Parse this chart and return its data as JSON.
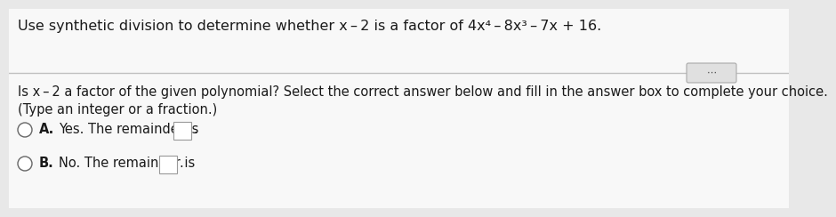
{
  "bg_color": "#e8e8e8",
  "panel_color": "#f5f5f5",
  "title_text": "Use synthetic division to determine whether x – 2 is a factor of 4x",
  "sup4": "4",
  "title_mid": "– 8x",
  "sup3": "3",
  "title_end": "– 7x + 16.",
  "q_line1": "Is x – 2 a factor of the given polynomial? Select the correct answer below and fill in the answer box to complete your choice.",
  "q_line2": "(Type an integer or a fraction.)",
  "opt_a": "A.",
  "opt_a_text": "Yes. The remainder is",
  "opt_b": "B.",
  "opt_b_text": "No. The remainder is",
  "text_color": "#1a1a1a",
  "sep_color": "#c0c0c0",
  "dots_bg": "#e0e0e0",
  "dots_border": "#aaaaaa",
  "circle_edge": "#666666",
  "box_edge": "#999999",
  "fs_title": 11.5,
  "fs_body": 10.5,
  "fs_small": 10.0
}
